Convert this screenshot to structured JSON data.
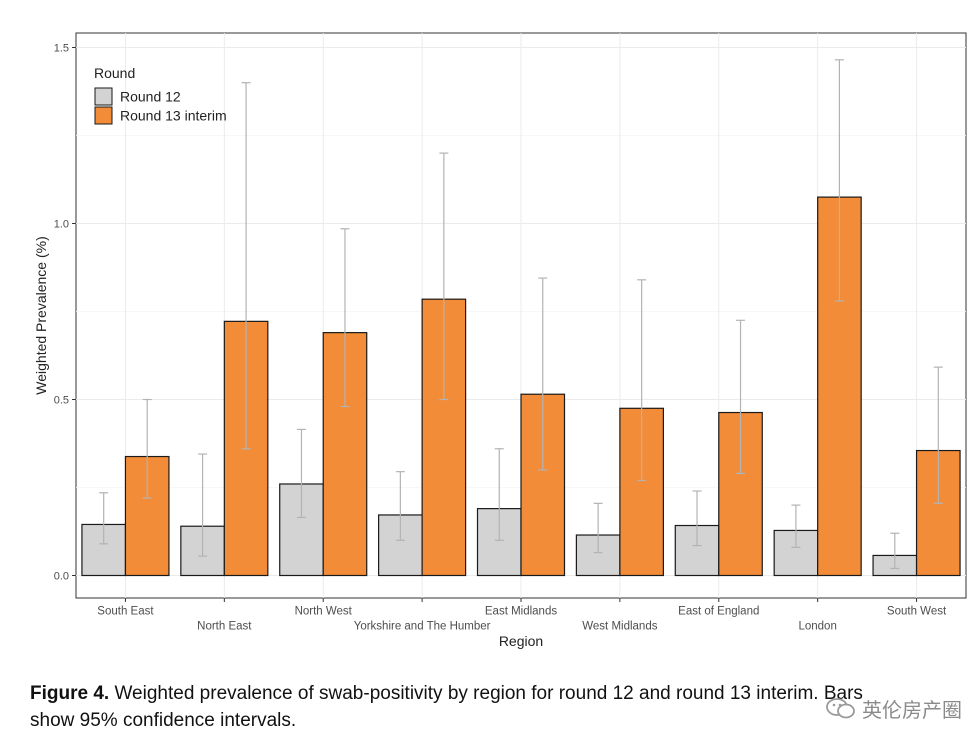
{
  "chart_data": {
    "type": "bar",
    "xlabel": "Region",
    "ylabel": "Weighted Prevalence (%)",
    "ylim": [
      0,
      1.55
    ],
    "y_ticks": [
      "0.0",
      "0.5",
      "1.0",
      "1.5"
    ],
    "y_tick_values": [
      0,
      0.5,
      1.0,
      1.5
    ],
    "grid": true,
    "legend_title": "Round",
    "legend_position": "top-left",
    "categories": [
      "South East",
      "North East",
      "North West",
      "Yorkshire and The Humber",
      "East Midlands",
      "West Midlands",
      "East of England",
      "London",
      "South West"
    ],
    "series": [
      {
        "name": "Round 12",
        "color": "#d3d3d3",
        "values": [
          0.145,
          0.14,
          0.26,
          0.172,
          0.19,
          0.115,
          0.142,
          0.128,
          0.057
        ],
        "ci_low": [
          0.09,
          0.055,
          0.165,
          0.1,
          0.1,
          0.065,
          0.085,
          0.08,
          0.02
        ],
        "ci_high": [
          0.235,
          0.345,
          0.415,
          0.295,
          0.36,
          0.205,
          0.24,
          0.2,
          0.12
        ]
      },
      {
        "name": "Round 13 interim",
        "color": "#f28c38",
        "values": [
          0.338,
          0.722,
          0.69,
          0.785,
          0.515,
          0.475,
          0.463,
          1.075,
          0.355
        ],
        "ci_low": [
          0.22,
          0.36,
          0.48,
          0.5,
          0.3,
          0.27,
          0.29,
          0.78,
          0.205
        ],
        "ci_high": [
          0.5,
          1.4,
          0.985,
          1.2,
          0.845,
          0.84,
          0.725,
          1.465,
          0.592
        ]
      }
    ]
  },
  "caption": {
    "label": "Figure 4.",
    "text": " Weighted prevalence of swab-positivity by region for round 12 and round 13 interim. Bars show 95% confidence intervals."
  },
  "watermark": {
    "text": "英伦房产圈",
    "icon": "wechat-icon"
  }
}
